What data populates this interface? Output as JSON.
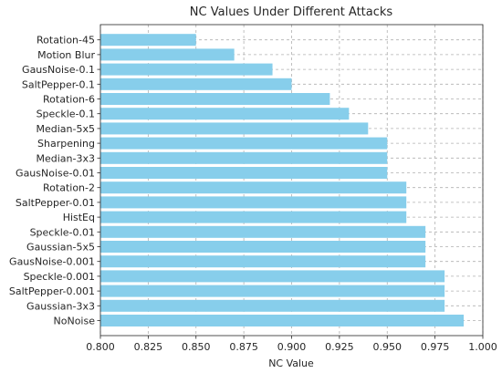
{
  "chart_data": {
    "type": "bar",
    "orientation": "horizontal",
    "title": "NC Values Under Different Attacks",
    "xlabel": "NC Value",
    "ylabel": "",
    "xlim": [
      0.8,
      1.0
    ],
    "x_ticks": [
      "0.800",
      "0.825",
      "0.850",
      "0.875",
      "0.900",
      "0.925",
      "0.950",
      "0.975",
      "1.000"
    ],
    "grid": true,
    "bar_color": "#87ceeb",
    "categories": [
      "NoNoise",
      "Gaussian-3x3",
      "SaltPepper-0.001",
      "Speckle-0.001",
      "GausNoise-0.001",
      "Gaussian-5x5",
      "Speckle-0.01",
      "HistEq",
      "SaltPepper-0.01",
      "Rotation-2",
      "GausNoise-0.01",
      "Median-3x3",
      "Sharpening",
      "Median-5x5",
      "Speckle-0.1",
      "Rotation-6",
      "SaltPepper-0.1",
      "GausNoise-0.1",
      "Motion Blur",
      "Rotation-45"
    ],
    "values": [
      0.99,
      0.98,
      0.98,
      0.98,
      0.97,
      0.97,
      0.97,
      0.96,
      0.96,
      0.96,
      0.95,
      0.95,
      0.95,
      0.94,
      0.93,
      0.92,
      0.9,
      0.89,
      0.87,
      0.85
    ]
  }
}
